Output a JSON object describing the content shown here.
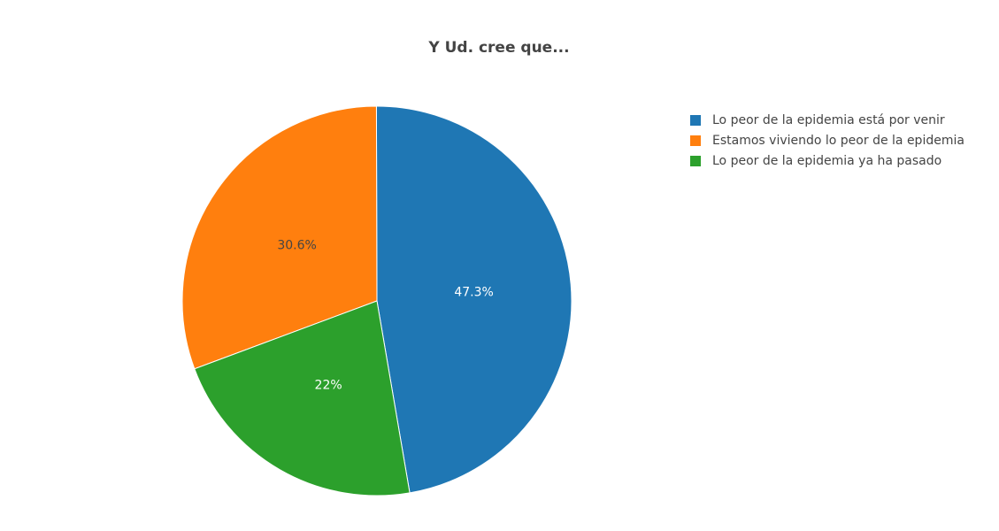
{
  "chart_data": {
    "type": "pie",
    "title": "Y Ud. cree que...",
    "categories": [
      "Lo peor de la epidemia está por venir",
      "Estamos viviendo lo peor de la epidemia",
      "Lo peor de la epidemia ya ha pasado"
    ],
    "values": [
      47.3,
      30.6,
      22
    ],
    "value_labels": [
      "47.3%",
      "30.6%",
      "22%"
    ],
    "colors": [
      "#1f77b4",
      "#ff7f0e",
      "#2ca02c"
    ],
    "direction": "counterclockwise",
    "rotation": 170.3,
    "legend": "top-right"
  }
}
